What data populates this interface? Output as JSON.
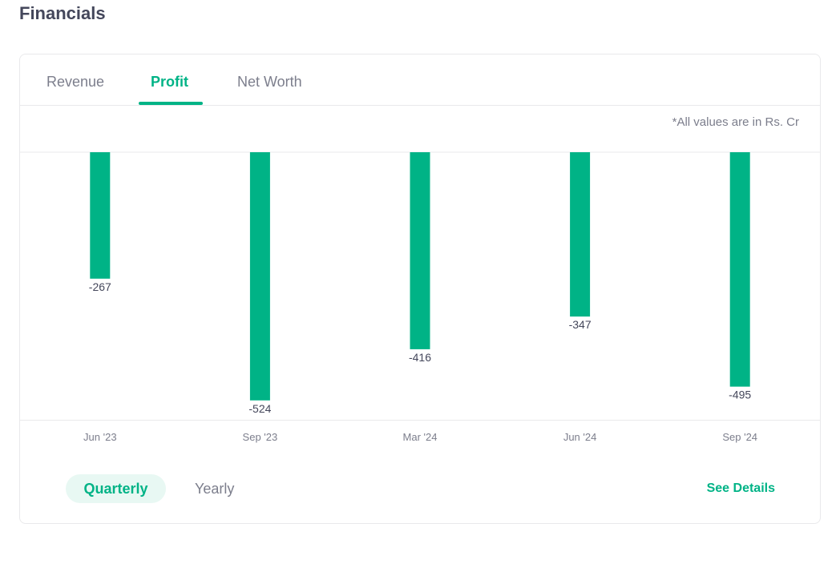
{
  "page": {
    "title": "Financials"
  },
  "tabs": [
    {
      "label": "Revenue",
      "active": false
    },
    {
      "label": "Profit",
      "active": true
    },
    {
      "label": "Net Worth",
      "active": false
    }
  ],
  "units_note": "*All values are in Rs. Cr",
  "period": {
    "options": [
      {
        "label": "Quarterly",
        "active": true
      },
      {
        "label": "Yearly",
        "active": false
      }
    ]
  },
  "see_details_label": "See Details",
  "colors": {
    "accent": "#00b386",
    "accent_soft": "#e8f8f3",
    "text_primary": "#44475b",
    "text_muted": "#7c7e8c",
    "border": "#e9e9eb"
  },
  "chart_data": {
    "type": "bar",
    "categories": [
      "Jun '23",
      "Sep '23",
      "Mar '24",
      "Jun '24",
      "Sep '24"
    ],
    "values": [
      -267,
      -524,
      -416,
      -347,
      -495
    ],
    "data_labels": [
      "-267",
      "-524",
      "-416",
      "-347",
      "-495"
    ],
    "title": "",
    "xlabel": "",
    "ylabel": "",
    "ylim": [
      -565,
      0
    ],
    "grid": false,
    "legend": "none",
    "bar_color": "#00b386"
  }
}
